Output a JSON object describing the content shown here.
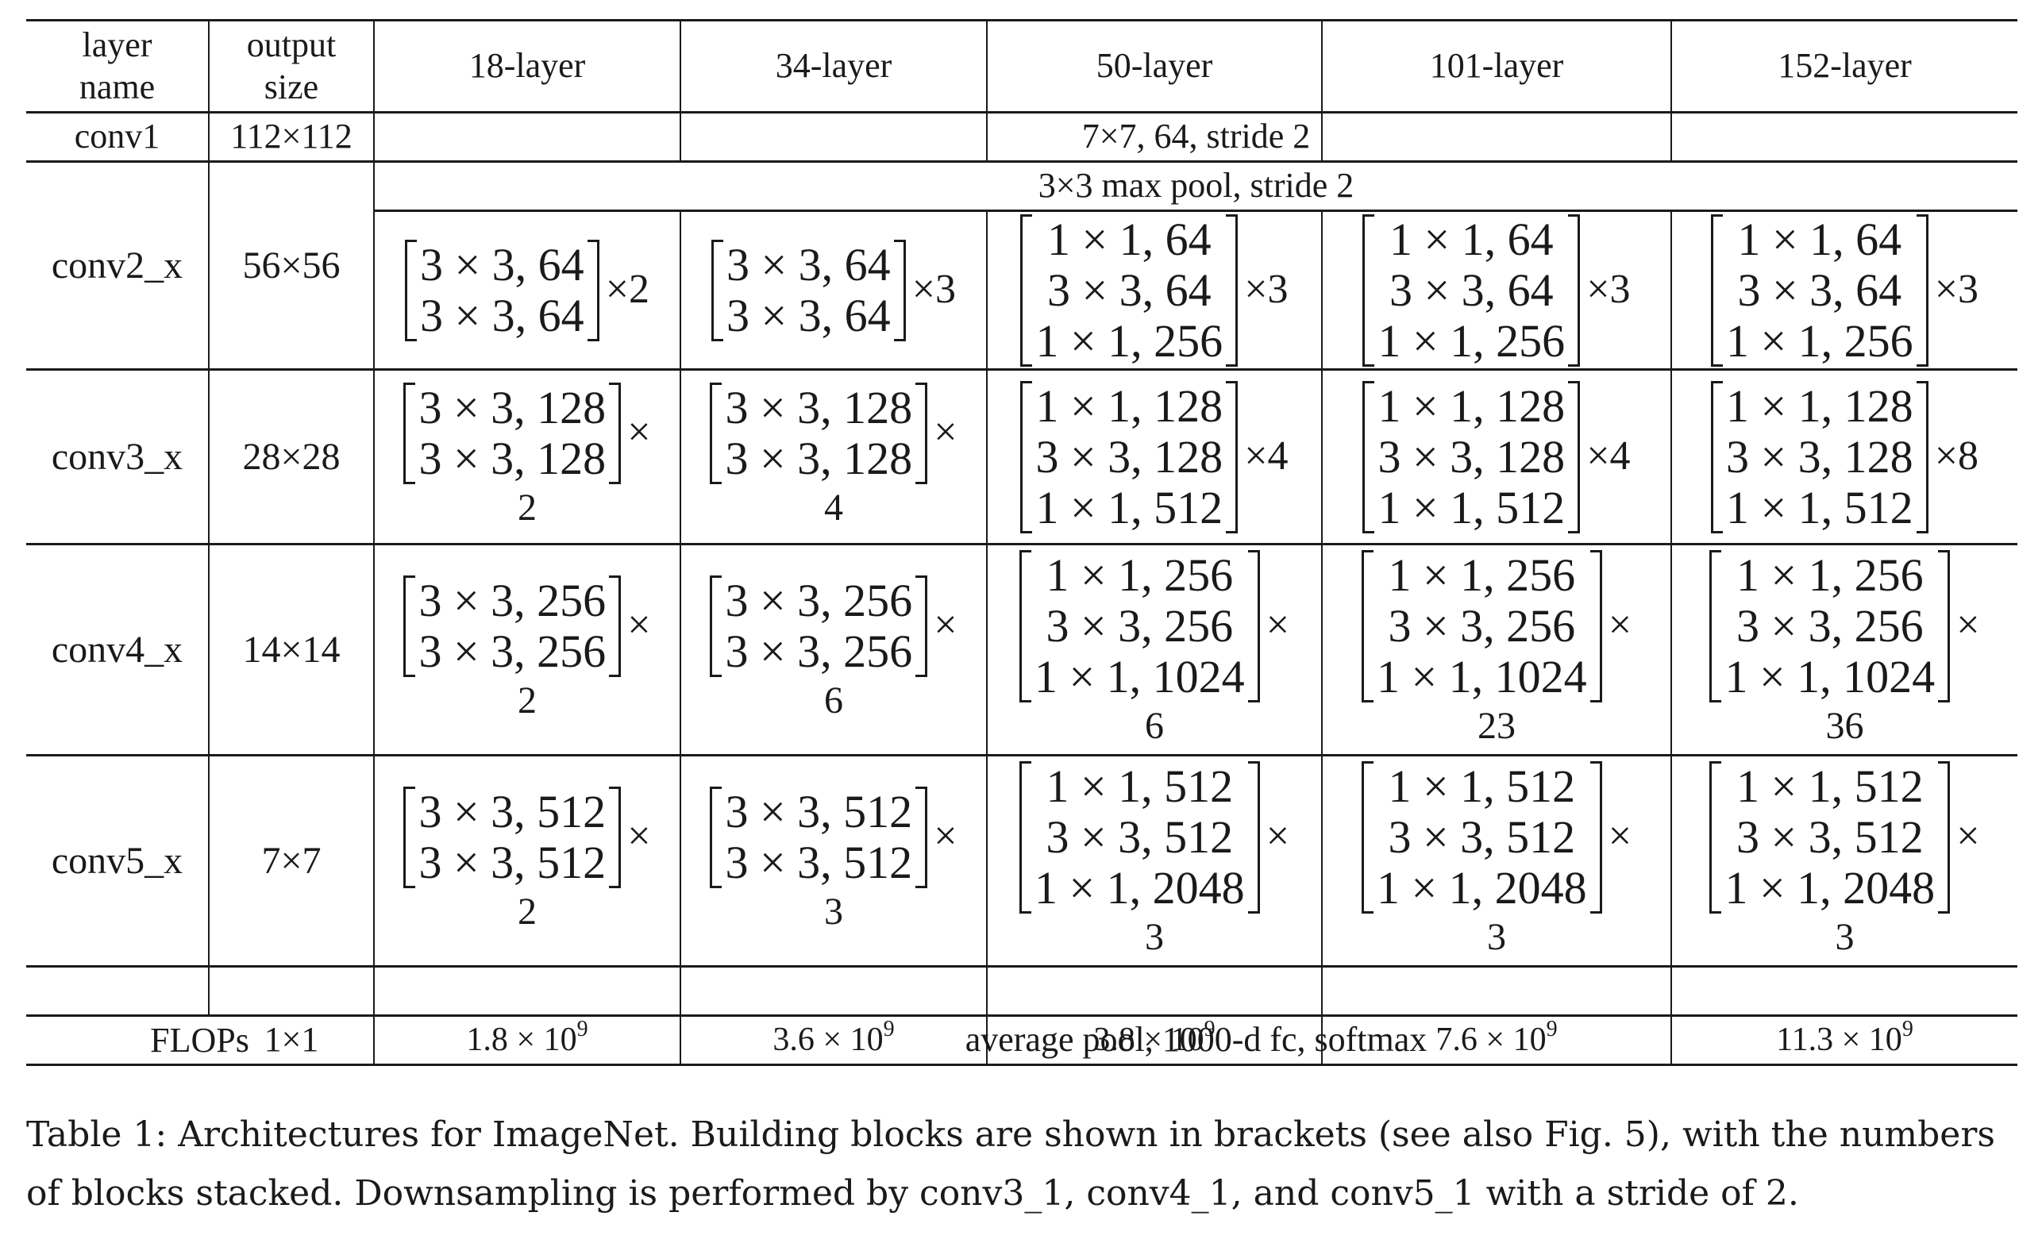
{
  "headers": {
    "layer_name": [
      "layer",
      "name"
    ],
    "output_size": [
      "output",
      "size"
    ],
    "columns": [
      "18-layer",
      "34-layer",
      "50-layer",
      "101-layer",
      "152-layer"
    ]
  },
  "rows": {
    "conv1": {
      "name": "conv1",
      "size": "112×112",
      "text": "7×7, 64, stride 2"
    },
    "conv2": {
      "name": "conv2_x",
      "size": "56×56",
      "pool": "3×3 max pool, stride 2",
      "blocks": [
        {
          "lines": [
            "3 × 3, 64",
            "3 × 3, 64"
          ],
          "times": "×2",
          "count": ""
        },
        {
          "lines": [
            "3 × 3, 64",
            "3 × 3, 64"
          ],
          "times": "×3",
          "count": ""
        },
        {
          "lines": [
            "1 × 1, 64",
            "3 × 3, 64",
            "1 × 1, 256"
          ],
          "times": "×3",
          "count": ""
        },
        {
          "lines": [
            "1 × 1, 64",
            "3 × 3, 64",
            "1 × 1, 256"
          ],
          "times": "×3",
          "count": ""
        },
        {
          "lines": [
            "1 × 1, 64",
            "3 × 3, 64",
            "1 × 1, 256"
          ],
          "times": "×3",
          "count": ""
        }
      ]
    },
    "conv3": {
      "name": "conv3_x",
      "size": "28×28",
      "blocks": [
        {
          "lines": [
            "3 × 3, 128",
            "3 × 3, 128"
          ],
          "times": "×",
          "count": "2"
        },
        {
          "lines": [
            "3 × 3, 128",
            "3 × 3, 128"
          ],
          "times": "×",
          "count": "4"
        },
        {
          "lines": [
            "1 × 1, 128",
            "3 × 3, 128",
            "1 × 1, 512"
          ],
          "times": "×4",
          "count": ""
        },
        {
          "lines": [
            "1 × 1, 128",
            "3 × 3, 128",
            "1 × 1, 512"
          ],
          "times": "×4",
          "count": ""
        },
        {
          "lines": [
            "1 × 1, 128",
            "3 × 3, 128",
            "1 × 1, 512"
          ],
          "times": "×8",
          "count": ""
        }
      ]
    },
    "conv4": {
      "name": "conv4_x",
      "size": "14×14",
      "blocks": [
        {
          "lines": [
            "3 × 3, 256",
            "3 × 3, 256"
          ],
          "times": "×",
          "count": "2"
        },
        {
          "lines": [
            "3 × 3, 256",
            "3 × 3, 256"
          ],
          "times": "×",
          "count": "6"
        },
        {
          "lines": [
            "1 × 1, 256",
            "3 × 3, 256",
            "1 × 1, 1024"
          ],
          "times": "×",
          "count": "6"
        },
        {
          "lines": [
            "1 × 1, 256",
            "3 × 3, 256",
            "1 × 1, 1024"
          ],
          "times": "×",
          "count": "23"
        },
        {
          "lines": [
            "1 × 1, 256",
            "3 × 3, 256",
            "1 × 1, 1024"
          ],
          "times": "×",
          "count": "36"
        }
      ]
    },
    "conv5": {
      "name": "conv5_x",
      "size": "7×7",
      "blocks": [
        {
          "lines": [
            "3 × 3, 512",
            "3 × 3, 512"
          ],
          "times": "×",
          "count": "2"
        },
        {
          "lines": [
            "3 × 3, 512",
            "3 × 3, 512"
          ],
          "times": "×",
          "count": "3"
        },
        {
          "lines": [
            "1 × 1, 512",
            "3 × 3, 512",
            "1 × 1, 2048"
          ],
          "times": "×",
          "count": "3"
        },
        {
          "lines": [
            "1 × 1, 512",
            "3 × 3, 512",
            "1 × 1, 2048"
          ],
          "times": "×",
          "count": "3"
        },
        {
          "lines": [
            "1 × 1, 512",
            "3 × 3, 512",
            "1 × 1, 2048"
          ],
          "times": "×",
          "count": "3"
        }
      ]
    },
    "final": {
      "size": "1×1",
      "text": "average pool, 1000-d fc, softmax"
    },
    "flops": {
      "label": "FLOPs",
      "mantissas": [
        "1.8",
        "3.6",
        "3.8",
        "7.6",
        "11.3"
      ],
      "times": "×",
      "base": "10",
      "exponent": "9"
    }
  },
  "caption": {
    "line1": "Table 1: Architectures for ImageNet. Building blocks are shown in brackets (see also Fig. 5), with the numbers",
    "line2": "of blocks stacked. Downsampling is performed by conv3_1, conv4_1, and conv5_1 with a stride of 2."
  }
}
